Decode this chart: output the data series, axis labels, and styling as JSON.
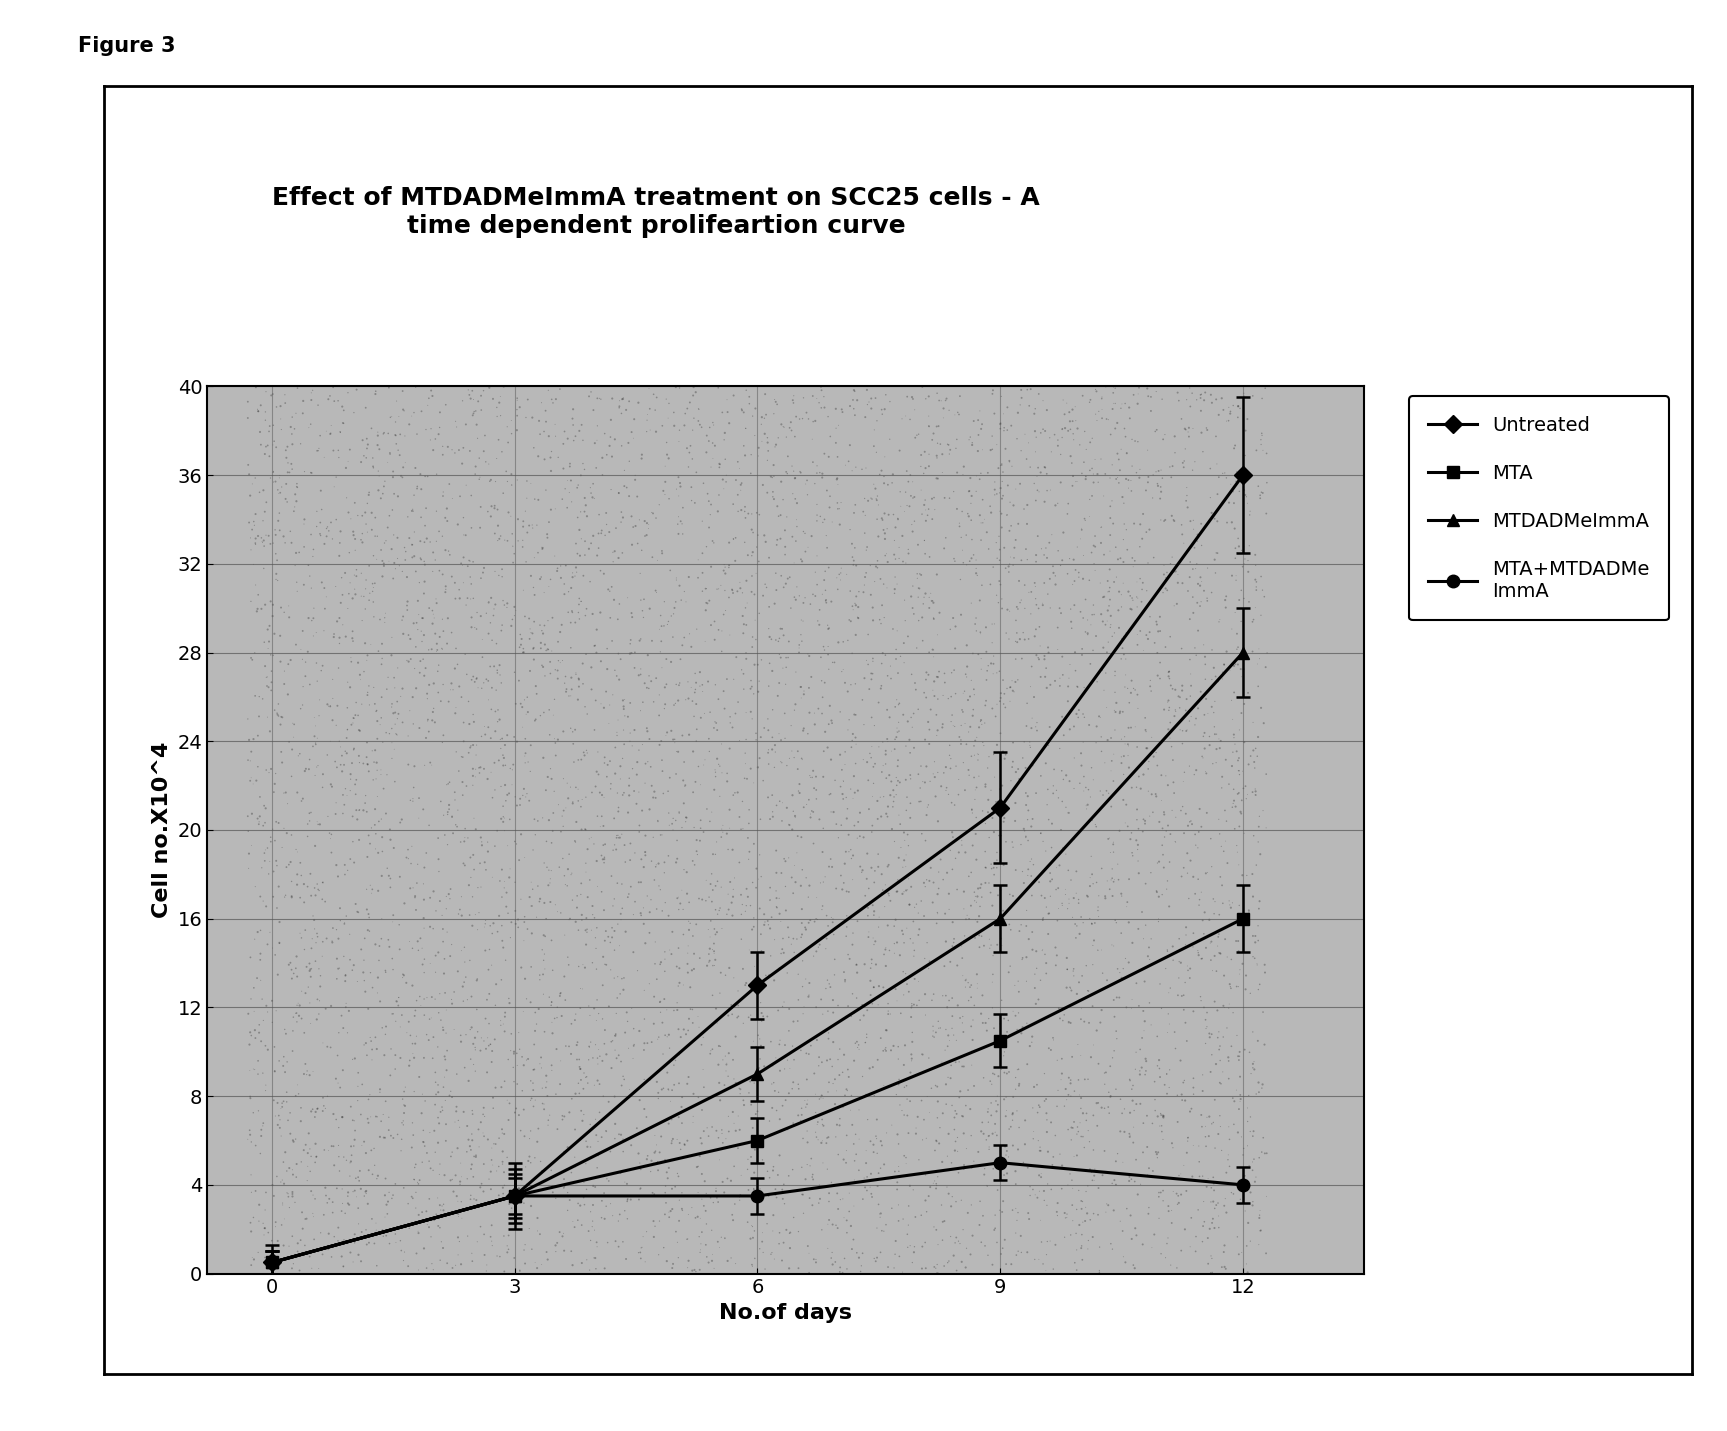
{
  "title_line1": "Effect of MTDADMeImmA treatment on SCC25 cells - A",
  "title_line2": "time dependent prolifeartion curve",
  "xlabel": "No.of days",
  "ylabel": "Cell no.X10^4",
  "figure_label": "Figure 3",
  "x": [
    0,
    3,
    6,
    9,
    12
  ],
  "series": {
    "Untreated": {
      "y": [
        0.5,
        3.5,
        13.0,
        21.0,
        36.0
      ],
      "yerr": [
        0.8,
        1.5,
        1.5,
        2.5,
        3.5
      ],
      "color": "#000000",
      "marker": "D",
      "markersize": 9,
      "label": "Untreated"
    },
    "MTA": {
      "y": [
        0.5,
        3.5,
        6.0,
        10.5,
        16.0
      ],
      "yerr": [
        0.5,
        1.0,
        1.0,
        1.2,
        1.5
      ],
      "color": "#000000",
      "marker": "s",
      "markersize": 9,
      "label": "MTA"
    },
    "MTDADMeImmA": {
      "y": [
        0.5,
        3.5,
        9.0,
        16.0,
        28.0
      ],
      "yerr": [
        0.5,
        1.2,
        1.2,
        1.5,
        2.0
      ],
      "color": "#000000",
      "marker": "^",
      "markersize": 9,
      "label": "MTDADMeImmA"
    },
    "MTA+MTDADMeImmA": {
      "y": [
        0.5,
        3.5,
        3.5,
        5.0,
        4.0
      ],
      "yerr": [
        0.5,
        0.8,
        0.8,
        0.8,
        0.8
      ],
      "color": "#000000",
      "marker": "o",
      "markersize": 9,
      "label": "MTA+MTDADMe\nImmA"
    }
  },
  "ylim": [
    0,
    40
  ],
  "yticks": [
    0,
    4,
    8,
    12,
    16,
    20,
    24,
    28,
    32,
    36,
    40
  ],
  "xticks": [
    0,
    3,
    6,
    9,
    12
  ],
  "grid_color": "#555555",
  "plot_bg_color": "#b8b8b8",
  "fig_bg_color": "#ffffff",
  "title_fontsize": 18,
  "axis_label_fontsize": 16,
  "tick_fontsize": 14,
  "legend_fontsize": 14
}
